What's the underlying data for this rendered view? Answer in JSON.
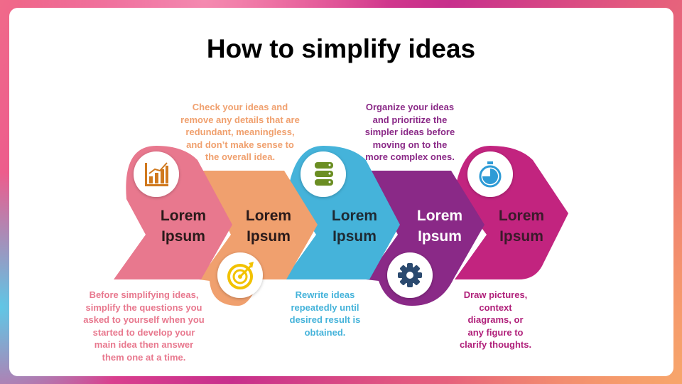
{
  "title": "How to simplify ideas",
  "steps": [
    {
      "label_line1": "Lorem",
      "label_line2": "Ipsum",
      "icon": "bar-chart-icon",
      "color": "#E8788E",
      "description": "Before simplifying ideas,\nsimplify  the questions you\nasked to yourself when you\nstarted to develop your\nmain  idea then answer\nthem one at a time."
    },
    {
      "label_line1": "Lorem",
      "label_line2": "Ipsum",
      "icon": "target-icon",
      "color": "#F0A06E",
      "description": "Check your ideas and\nremove any details that are\nredundant, meaningless,\nand don’t make  sense to\nthe overall idea."
    },
    {
      "label_line1": "Lorem",
      "label_line2": "Ipsum",
      "icon": "database-icon",
      "color": "#45B3DA",
      "description": "Rewrite ideas\nrepeatedly until\ndesired result is\nobtained."
    },
    {
      "label_line1": "Lorem",
      "label_line2": "Ipsum",
      "icon": "gear-icon",
      "color": "#8A2987",
      "description": "Organize your ideas\nand prioritize the\nsimpler ideas before\nmoving on to the\nmore complex ones."
    },
    {
      "label_line1": "Lorem",
      "label_line2": "Ipsum",
      "icon": "stopwatch-icon",
      "color": "#C2247F",
      "description": "Draw pictures,\ncontext\ndiagrams,  or\nany figure to\nclarify thoughts."
    }
  ]
}
